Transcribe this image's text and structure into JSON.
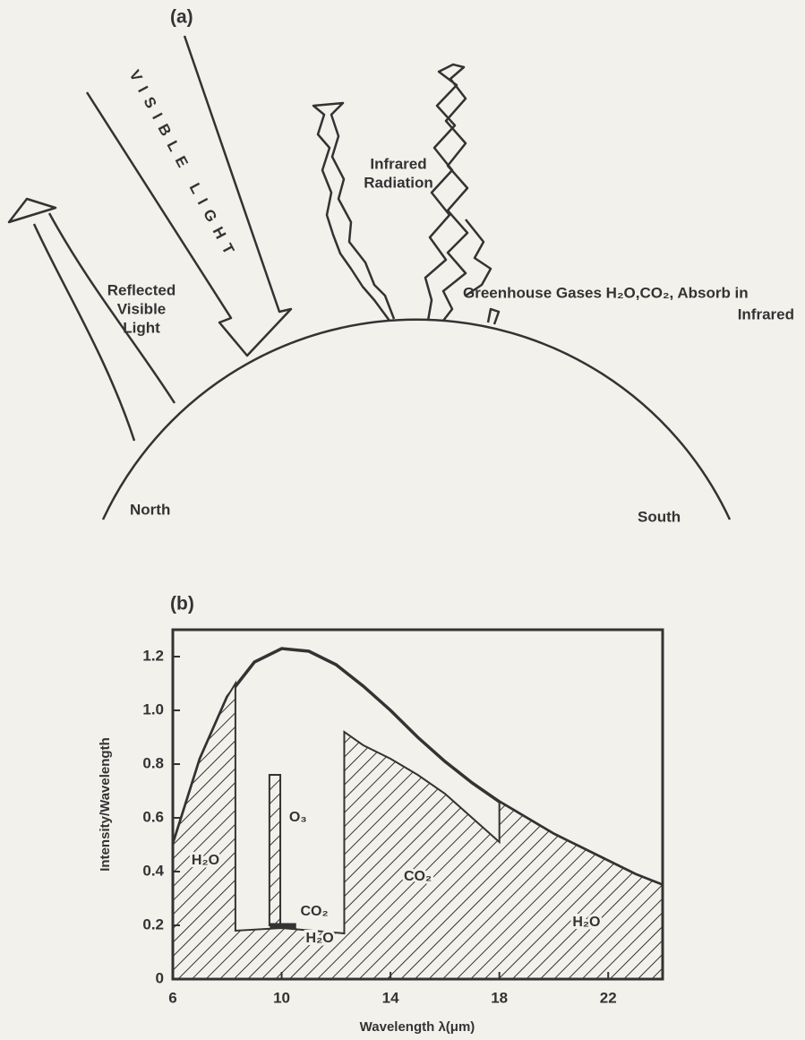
{
  "panel_a": {
    "title": "(a)",
    "visible_light": "VISIBLE LIGHT",
    "reflected": [
      "Reflected",
      "Visible",
      "Light"
    ],
    "infrared": [
      "Infrared",
      "Radiation"
    ],
    "greenhouse": [
      "Greenhouse Gases H₂O,CO₂, Absorb in",
      "Infrared"
    ],
    "north": "North",
    "south": "South"
  },
  "chart_data": {
    "type": "area",
    "title": "(b)",
    "y_label": "Intensity/Wavelength",
    "x_label": "Wavelength λ(μm)",
    "xlim": [
      6,
      24
    ],
    "xticks": [
      6,
      10,
      14,
      18,
      22
    ],
    "ylim": [
      0,
      1.3
    ],
    "yticks": [
      0,
      0.2,
      0.4,
      0.6,
      0.8,
      {
        "value": 1,
        "label": "1.0"
      },
      1.2
    ],
    "series": [
      {
        "style": "line",
        "x": [
          6,
          7,
          8,
          9,
          10,
          11,
          12,
          13,
          14,
          15,
          16,
          17,
          18,
          19,
          20,
          21,
          22,
          23,
          24
        ],
        "values": [
          0.5,
          0.82,
          1.05,
          1.18,
          1.23,
          1.22,
          1.17,
          1.09,
          1.0,
          0.9,
          0.81,
          0.73,
          0.66,
          0.6,
          0.54,
          0.49,
          0.44,
          0.39,
          0.35
        ]
      },
      {
        "style": "hatch",
        "x": [
          6,
          7,
          8,
          8.3,
          8.3,
          10,
          12.3,
          12.3,
          13,
          14,
          15,
          16,
          17,
          18,
          18,
          19,
          20,
          21,
          22,
          23,
          24
        ],
        "values": [
          0.5,
          0.82,
          1.05,
          1.1,
          0.18,
          0.19,
          0.17,
          0.92,
          0.87,
          0.82,
          0.76,
          0.69,
          0.6,
          0.51,
          0.66,
          0.6,
          0.54,
          0.49,
          0.44,
          0.39,
          0.35
        ]
      },
      {
        "style": "hatch",
        "closed": true,
        "x": [
          9.55,
          9.55,
          9.95,
          9.95
        ],
        "values": [
          0.2,
          0.76,
          0.76,
          0.2
        ]
      },
      {
        "style": "solid",
        "closed": true,
        "x": [
          9.6,
          9.6,
          10.5,
          10.5
        ],
        "values": [
          0.19,
          0.205,
          0.205,
          0.19
        ]
      }
    ],
    "annotations": [
      "O₃",
      "CO₂",
      "H₂O",
      "CO₂",
      "H₂O",
      "H₂O"
    ]
  }
}
